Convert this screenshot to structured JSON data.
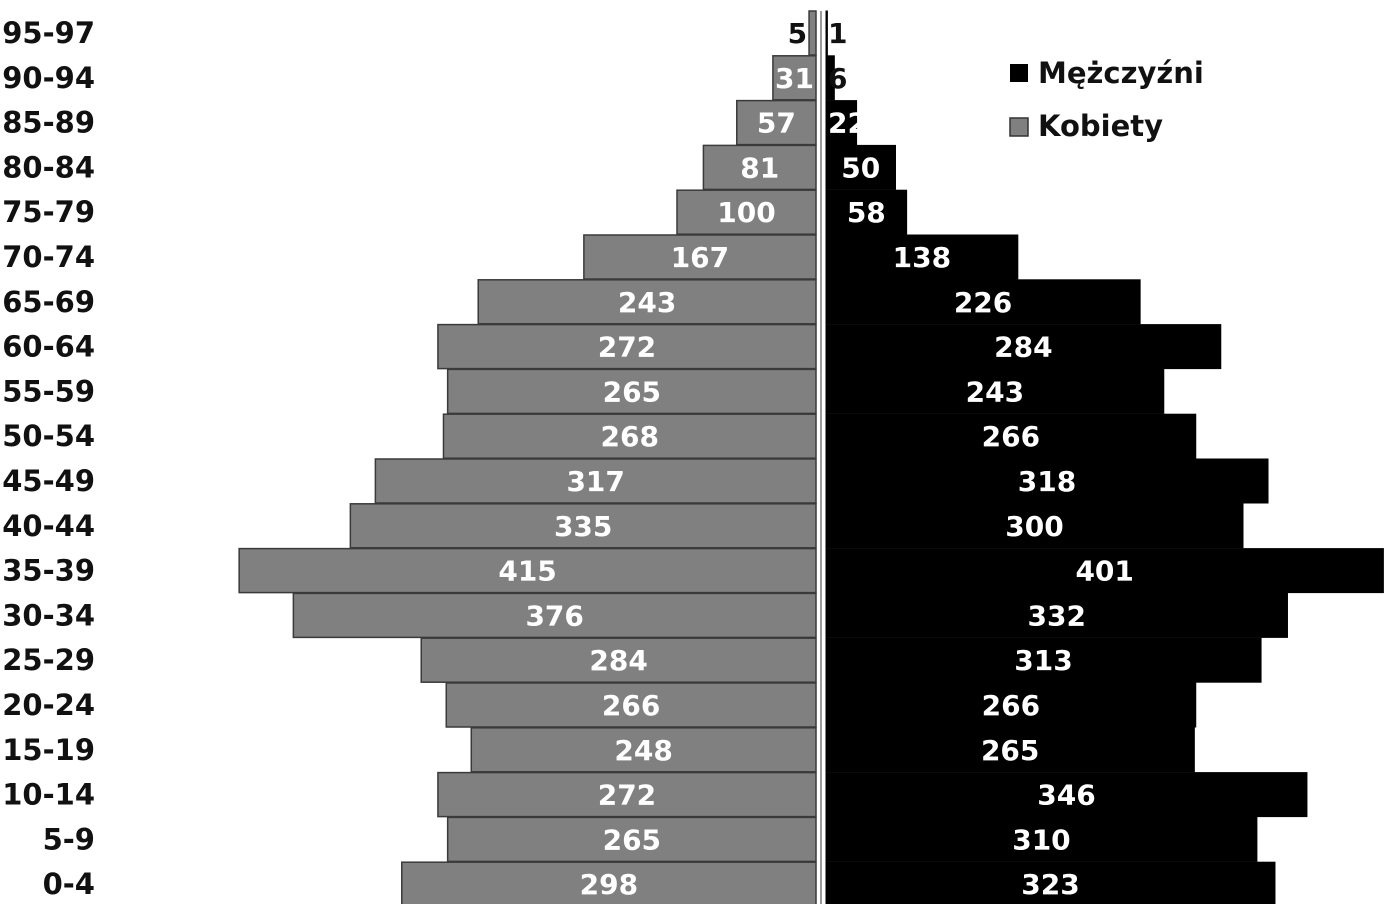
{
  "chart_data": {
    "type": "bar",
    "orientation": "horizontal",
    "subtype": "population-pyramid",
    "categories": [
      "95-97",
      "90-94",
      "85-89",
      "80-84",
      "75-79",
      "70-74",
      "65-69",
      "60-64",
      "55-59",
      "50-54",
      "45-49",
      "40-44",
      "35-39",
      "30-34",
      "25-29",
      "20-24",
      "15-19",
      "10-14",
      "5-9",
      "0-4"
    ],
    "series": [
      {
        "name": "Mężczyźni",
        "color": "#000000",
        "side": "right",
        "values": [
          1,
          6,
          22,
          50,
          58,
          138,
          226,
          284,
          243,
          266,
          318,
          300,
          401,
          332,
          313,
          266,
          265,
          346,
          310,
          323
        ]
      },
      {
        "name": "Kobiety",
        "color": "#808080",
        "side": "left",
        "values": [
          5,
          31,
          57,
          81,
          100,
          167,
          243,
          272,
          265,
          268,
          317,
          335,
          415,
          376,
          284,
          266,
          248,
          272,
          265,
          298
        ]
      }
    ],
    "title": "",
    "xlabel": "",
    "ylabel": "",
    "legend_position": "top-right",
    "grid": false
  }
}
